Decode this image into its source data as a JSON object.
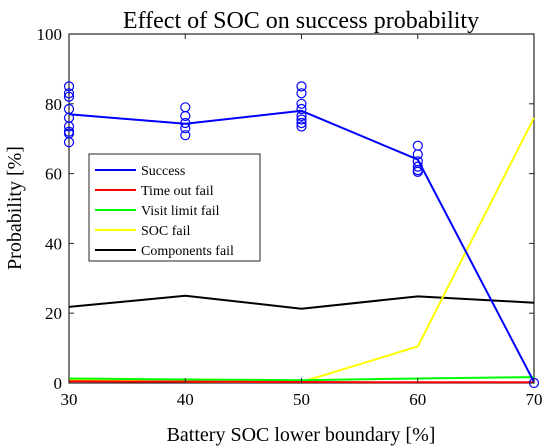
{
  "chart_data": {
    "type": "line",
    "title": "Effect of SOC on success probability",
    "xlabel": "Battery SOC lower boundary [%]",
    "ylabel": "Probability [%]",
    "xlim": [
      30,
      70
    ],
    "ylim": [
      0,
      100
    ],
    "x_ticks": [
      30,
      40,
      50,
      60,
      70
    ],
    "y_ticks": [
      0,
      20,
      40,
      60,
      80,
      100
    ],
    "grid": false,
    "legend_position": "middle-left",
    "x": [
      30,
      40,
      50,
      60,
      70
    ],
    "series": [
      {
        "name": "Success",
        "color": "#0000ff",
        "values": [
          77,
          74.3,
          78,
          64,
          0.3
        ]
      },
      {
        "name": "Time out fail",
        "color": "#ff0000",
        "values": [
          0.5,
          0.4,
          0.3,
          0.2,
          0.2
        ]
      },
      {
        "name": "Visit limit fail",
        "color": "#00ff00",
        "values": [
          1.3,
          1.0,
          0.8,
          1.3,
          1.7
        ]
      },
      {
        "name": "SOC fail",
        "color": "#ffff00",
        "values": [
          0.8,
          0.4,
          0.3,
          10.5,
          76
        ]
      },
      {
        "name": "Components fail",
        "color": "#000000",
        "values": [
          21.8,
          25,
          21.3,
          24.8,
          23
        ]
      }
    ],
    "scatter_points": {
      "series": "Success",
      "marker": "open-circle",
      "color": "#0000ff",
      "points": [
        [
          30,
          85
        ],
        [
          30,
          83
        ],
        [
          30,
          82
        ],
        [
          30,
          78.5
        ],
        [
          30,
          76
        ],
        [
          30,
          73.5
        ],
        [
          30,
          72
        ],
        [
          30,
          71.5
        ],
        [
          30,
          69
        ],
        [
          40,
          79
        ],
        [
          40,
          76.5
        ],
        [
          40,
          74.5
        ],
        [
          40,
          73
        ],
        [
          40,
          71
        ],
        [
          50,
          85
        ],
        [
          50,
          83
        ],
        [
          50,
          80
        ],
        [
          50,
          78.5
        ],
        [
          50,
          76.5
        ],
        [
          50,
          75.5
        ],
        [
          50,
          74.5
        ],
        [
          50,
          73.5
        ],
        [
          60,
          68
        ],
        [
          60,
          65.5
        ],
        [
          60,
          63.5
        ],
        [
          60,
          62
        ],
        [
          60,
          61
        ],
        [
          60,
          60.5
        ],
        [
          70,
          0
        ]
      ]
    }
  }
}
